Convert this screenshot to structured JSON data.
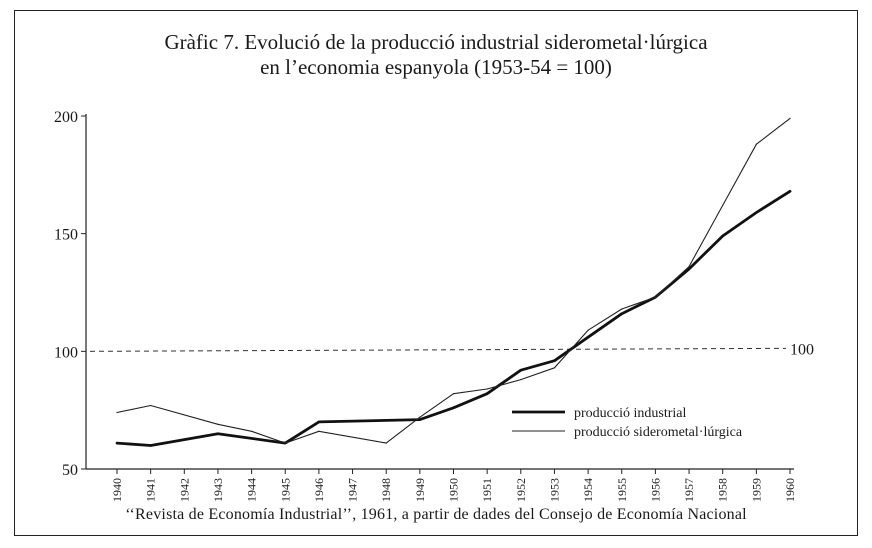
{
  "chart_data": {
    "type": "line",
    "title_line1": "Gràfic 7. Evolució de la producció industrial siderometal·lúrgica",
    "title_line2": "en l’economia espanyola (1953-54 = 100)",
    "source": "‘‘Revista de Economía Industrial’’, 1961, a partir de dades del Consejo de Economía Nacional",
    "x": [
      "1940",
      "1941",
      "1942",
      "1943",
      "1944",
      "1945",
      "1946",
      "1947",
      "1948",
      "1949",
      "1950",
      "1951",
      "1952",
      "1953",
      "1954",
      "1955",
      "1956",
      "1957",
      "1958",
      "1959",
      "1960"
    ],
    "ylim": [
      50,
      200
    ],
    "yticks": [
      "50",
      "100",
      "150",
      "200"
    ],
    "reference_line": {
      "value": 100,
      "label": "100"
    },
    "legend_position": "bottom-right",
    "series": [
      {
        "name": "producció industrial",
        "style": "thick",
        "color": "#111111",
        "points": [
          {
            "x": "1940",
            "y": 61
          },
          {
            "x": "1941",
            "y": 60
          },
          {
            "x": "1943",
            "y": 65
          },
          {
            "x": "1945",
            "y": 61
          },
          {
            "x": "1946",
            "y": 70
          },
          {
            "x": "1949",
            "y": 71
          },
          {
            "x": "1950",
            "y": 76
          },
          {
            "x": "1951",
            "y": 82
          },
          {
            "x": "1952",
            "y": 92
          },
          {
            "x": "1953",
            "y": 96
          },
          {
            "x": "1954",
            "y": 106
          },
          {
            "x": "1955",
            "y": 116
          },
          {
            "x": "1956",
            "y": 123
          },
          {
            "x": "1957",
            "y": 135
          },
          {
            "x": "1958",
            "y": 149
          },
          {
            "x": "1959",
            "y": 159
          },
          {
            "x": "1960",
            "y": 168
          }
        ]
      },
      {
        "name": "producció siderometal·lúrgica",
        "style": "thin",
        "color": "#222222",
        "points": [
          {
            "x": "1940",
            "y": 74
          },
          {
            "x": "1941",
            "y": 77
          },
          {
            "x": "1943",
            "y": 69
          },
          {
            "x": "1944",
            "y": 66
          },
          {
            "x": "1945",
            "y": 61
          },
          {
            "x": "1946",
            "y": 66
          },
          {
            "x": "1948",
            "y": 61
          },
          {
            "x": "1949",
            "y": 72
          },
          {
            "x": "1950",
            "y": 82
          },
          {
            "x": "1951",
            "y": 84
          },
          {
            "x": "1952",
            "y": 88
          },
          {
            "x": "1953",
            "y": 93
          },
          {
            "x": "1954",
            "y": 109
          },
          {
            "x": "1955",
            "y": 118
          },
          {
            "x": "1956",
            "y": 123
          },
          {
            "x": "1957",
            "y": 136
          },
          {
            "x": "1958",
            "y": 162
          },
          {
            "x": "1959",
            "y": 188
          },
          {
            "x": "1960",
            "y": 199
          }
        ]
      }
    ]
  }
}
